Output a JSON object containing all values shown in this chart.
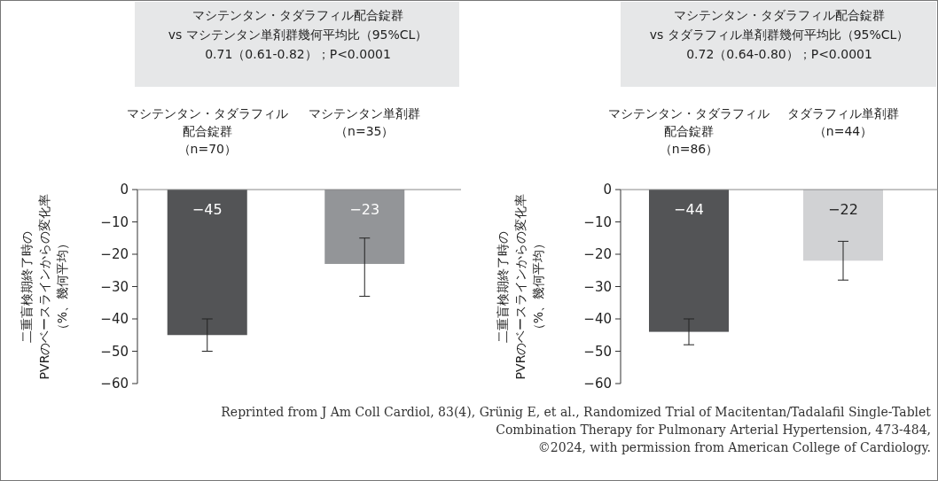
{
  "chart_data": [
    {
      "type": "bar",
      "title": "マシテンタン・タダラフィル配合錠群\nvs マシテンタン単剤群幾何平均比（95%CL）\n0.71（0.61-0.82）；P<0.0001",
      "ylabel": "二重盲検期終了時の\nPVRのベースラインからの変化率（%、幾何平均）",
      "categories": [
        "マシテンタン・タダラフィル配合錠群（n=70）",
        "マシテンタン単剤群（n=35）"
      ],
      "values": [
        -45,
        -23
      ],
      "colors": [
        "#535456",
        "#939598"
      ],
      "errors": [
        [
          -50,
          -40
        ],
        [
          -33,
          -15
        ]
      ],
      "data_labels": true,
      "ylim": [
        -60,
        0
      ],
      "yticks": [
        -60,
        -50,
        -40,
        -30,
        -20,
        -10,
        0
      ]
    },
    {
      "type": "bar",
      "title": "マシテンタン・タダラフィル配合錠群\nvs タダラフィル単剤群幾何平均比（95%CL）\n0.72（0.64-0.80）；P<0.0001",
      "ylabel": "二重盲検期終了時の\nPVRのベースラインからの変化率（%、幾何平均）",
      "categories": [
        "マシテンタン・タダラフィル配合錠群（n=86）",
        "タダラフィル単剤群（n=44）"
      ],
      "values": [
        -44,
        -22
      ],
      "colors": [
        "#535456",
        "#d1d2d4"
      ],
      "errors": [
        [
          -48,
          -40
        ],
        [
          -28,
          -16
        ]
      ],
      "data_labels": true,
      "ylim": [
        -60,
        0
      ],
      "yticks": [
        -60,
        -50,
        -40,
        -30,
        -20,
        -10,
        0
      ],
      "annotations": [
        "Reprinted from J Am Coll Cardiol, 83(4), Grünig E, et al., Randomized Trial of Macitentan/Tadalafil Single-Tablet\nCombination Therapy for Pulmonary Arterial Hypertension, 473-484,\n©2024, with permission from American College of Cardiology."
      ]
    }
  ]
}
